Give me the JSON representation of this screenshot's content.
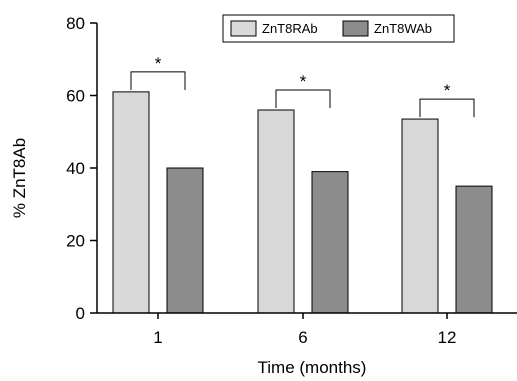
{
  "chart_data": {
    "type": "bar",
    "categories": [
      "1",
      "6",
      "12"
    ],
    "series": [
      {
        "name": "ZnT8RAb",
        "values": [
          61,
          56,
          53.5
        ],
        "color": "#d9d9d9"
      },
      {
        "name": "ZnT8WAb",
        "values": [
          40,
          39,
          35
        ],
        "color": "#8c8c8c"
      }
    ],
    "xlabel": "Time (months)",
    "ylabel": "% ZnT8Ab",
    "ylim": [
      0,
      80
    ],
    "yticks": [
      "0",
      "20",
      "40",
      "60",
      "80"
    ],
    "grid": false,
    "legend": "top-right",
    "annotations": [
      {
        "category": "1",
        "text": "*"
      },
      {
        "category": "6",
        "text": "*"
      },
      {
        "category": "12",
        "text": "*"
      }
    ]
  }
}
